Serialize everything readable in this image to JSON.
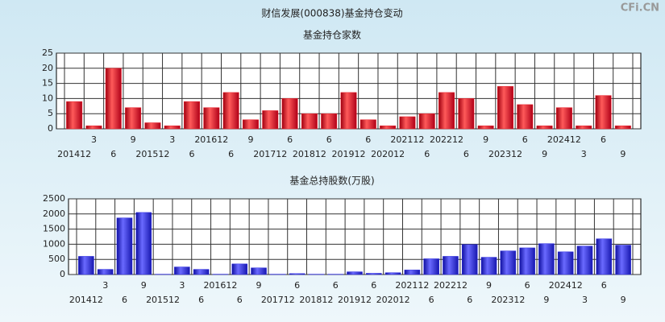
{
  "title": "财信发展(000838)基金持仓变动",
  "watermark": "CFi.CN",
  "chart_data": [
    {
      "type": "bar",
      "title": "基金持仓家数",
      "color": "#e8202a",
      "categories": [
        "201412",
        "3",
        "6",
        "9",
        "201512",
        "3",
        "6",
        "201612",
        "6",
        "9",
        "201712",
        "6",
        "201812",
        "6",
        "201912",
        "6",
        "202012",
        "202112",
        "6",
        "202212",
        "6",
        "9",
        "202312",
        "6",
        "9",
        "202412",
        "3",
        "6",
        "9"
      ],
      "values": [
        9,
        1,
        20,
        7,
        2,
        1,
        9,
        7,
        12,
        3,
        6,
        10,
        5,
        5,
        12,
        3,
        1,
        4,
        5,
        12,
        10,
        1,
        14,
        8,
        1,
        7,
        1,
        11,
        1
      ],
      "ylim": [
        0,
        25
      ],
      "yticks": [
        0,
        5,
        10,
        15,
        20,
        25
      ],
      "grid": true
    },
    {
      "type": "bar",
      "title": "基金总持股数(万股)",
      "color": "#2a2ae0",
      "categories": [
        "201412",
        "3",
        "6",
        "9",
        "201512",
        "3",
        "6",
        "201612",
        "6",
        "9",
        "201712",
        "6",
        "201812",
        "6",
        "201912",
        "6",
        "202012",
        "202112",
        "6",
        "202212",
        "6",
        "9",
        "202312",
        "6",
        "9",
        "202412",
        "3",
        "6",
        "9"
      ],
      "values": [
        600,
        170,
        1870,
        2050,
        10,
        250,
        170,
        10,
        350,
        220,
        10,
        30,
        10,
        10,
        90,
        40,
        60,
        150,
        520,
        600,
        990,
        570,
        780,
        880,
        1020,
        750,
        940,
        1180,
        970
      ],
      "ylim": [
        0,
        2500
      ],
      "yticks": [
        0,
        500,
        1000,
        1500,
        2000,
        2500
      ],
      "grid": true
    }
  ]
}
